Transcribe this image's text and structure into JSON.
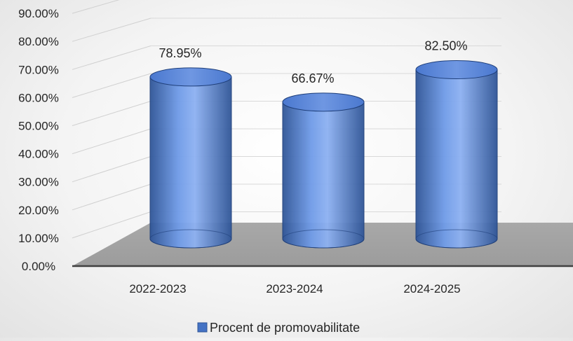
{
  "chart_data": {
    "type": "bar",
    "style": "3d-cylinder",
    "categories": [
      "2022-2023",
      "2023-2024",
      "2024-2025"
    ],
    "series": [
      {
        "name": "Procent de promovabilitate",
        "values": [
          78.95,
          66.67,
          82.5
        ],
        "labels": [
          "78.95%",
          "66.67%",
          "82.50%"
        ],
        "color": "#4472C4"
      }
    ],
    "y_ticks": [
      "0.00%",
      "10.00%",
      "20.00%",
      "30.00%",
      "40.00%",
      "50.00%",
      "60.00%",
      "70.00%",
      "80.00%",
      "90.00%"
    ],
    "ylim": [
      0,
      90
    ],
    "grid": true,
    "legend_position": "bottom",
    "floor_color": "#A6A6A6"
  }
}
